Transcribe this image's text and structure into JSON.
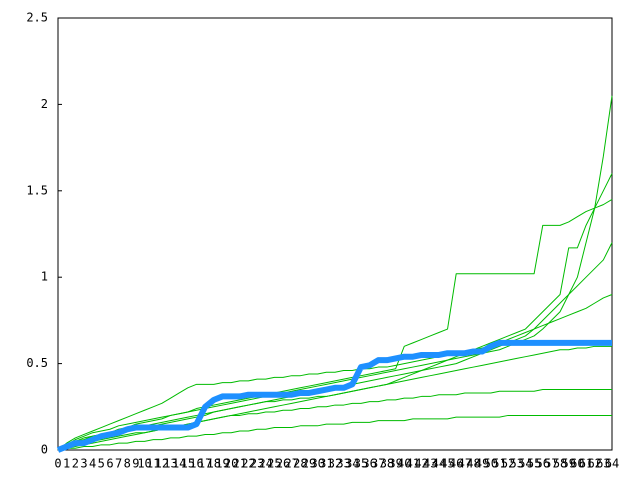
{
  "chart_data": {
    "type": "line",
    "categories": [
      "0",
      "1",
      "2",
      "3",
      "4",
      "5",
      "6",
      "7",
      "8",
      "9",
      "10",
      "11",
      "12",
      "13",
      "14",
      "15",
      "16",
      "17",
      "18",
      "19",
      "20",
      "21",
      "22",
      "23",
      "24",
      "25",
      "26",
      "27",
      "28",
      "29",
      "30",
      "31",
      "32",
      "33",
      "34",
      "35",
      "36",
      "37",
      "38",
      "39",
      "40",
      "41",
      "42",
      "43",
      "44",
      "45",
      "46",
      "47",
      "48",
      "49",
      "50",
      "51",
      "52",
      "53",
      "54",
      "55",
      "56",
      "57",
      "58",
      "59",
      "60",
      "61",
      "62",
      "63",
      "64"
    ],
    "ylim": [
      0,
      2.5
    ],
    "yticks": [
      0,
      0.5,
      1,
      1.5,
      2,
      2.5
    ],
    "series": [
      {
        "color": "#00bb00",
        "values": [
          0,
          0.02,
          0.04,
          0.05,
          0.07,
          0.08,
          0.09,
          0.1,
          0.11,
          0.12,
          0.13,
          0.14,
          0.15,
          0.16,
          0.17,
          0.18,
          0.19,
          0.2,
          0.22,
          0.23,
          0.24,
          0.25,
          0.26,
          0.27,
          0.28,
          0.29,
          0.3,
          0.31,
          0.32,
          0.33,
          0.34,
          0.35,
          0.36,
          0.37,
          0.38,
          0.39,
          0.4,
          0.41,
          0.42,
          0.43,
          0.44,
          0.45,
          0.46,
          0.47,
          0.48,
          0.49,
          0.5,
          0.52,
          0.54,
          0.56,
          0.58,
          0.6,
          0.62,
          0.64,
          0.66,
          0.7,
          0.75,
          0.8,
          0.85,
          0.9,
          1.0,
          1.2,
          1.4,
          1.7,
          2.05
        ]
      },
      {
        "color": "#00bb00",
        "values": [
          0,
          0.03,
          0.05,
          0.06,
          0.08,
          0.09,
          0.1,
          0.12,
          0.13,
          0.15,
          0.16,
          0.17,
          0.18,
          0.2,
          0.21,
          0.22,
          0.24,
          0.25,
          0.26,
          0.27,
          0.28,
          0.29,
          0.3,
          0.31,
          0.32,
          0.33,
          0.34,
          0.35,
          0.36,
          0.37,
          0.38,
          0.39,
          0.4,
          0.41,
          0.42,
          0.43,
          0.44,
          0.45,
          0.46,
          0.47,
          0.6,
          0.62,
          0.64,
          0.66,
          0.68,
          0.7,
          1.02,
          1.02,
          1.02,
          1.02,
          1.02,
          1.02,
          1.02,
          1.02,
          1.02,
          1.02,
          1.3,
          1.3,
          1.3,
          1.32,
          1.35,
          1.38,
          1.4,
          1.42,
          1.45
        ]
      },
      {
        "color": "#00bb00",
        "values": [
          0,
          0.01,
          0.02,
          0.03,
          0.04,
          0.05,
          0.06,
          0.07,
          0.08,
          0.09,
          0.1,
          0.11,
          0.12,
          0.13,
          0.14,
          0.15,
          0.16,
          0.17,
          0.18,
          0.19,
          0.2,
          0.21,
          0.22,
          0.23,
          0.24,
          0.25,
          0.26,
          0.27,
          0.28,
          0.29,
          0.3,
          0.31,
          0.32,
          0.33,
          0.34,
          0.35,
          0.36,
          0.37,
          0.38,
          0.4,
          0.42,
          0.44,
          0.46,
          0.48,
          0.5,
          0.52,
          0.54,
          0.56,
          0.58,
          0.6,
          0.62,
          0.64,
          0.66,
          0.68,
          0.7,
          0.75,
          0.8,
          0.85,
          0.9,
          1.17,
          1.17,
          1.3,
          1.4,
          1.5,
          1.6
        ]
      },
      {
        "color": "#00bb00",
        "values": [
          0,
          0.01,
          0.01,
          0.02,
          0.02,
          0.03,
          0.03,
          0.04,
          0.04,
          0.05,
          0.05,
          0.06,
          0.06,
          0.07,
          0.07,
          0.08,
          0.08,
          0.09,
          0.09,
          0.1,
          0.1,
          0.11,
          0.11,
          0.12,
          0.12,
          0.13,
          0.13,
          0.13,
          0.14,
          0.14,
          0.14,
          0.15,
          0.15,
          0.15,
          0.16,
          0.16,
          0.16,
          0.17,
          0.17,
          0.17,
          0.17,
          0.18,
          0.18,
          0.18,
          0.18,
          0.18,
          0.19,
          0.19,
          0.19,
          0.19,
          0.19,
          0.19,
          0.2,
          0.2,
          0.2,
          0.2,
          0.2,
          0.2,
          0.2,
          0.2,
          0.2,
          0.2,
          0.2,
          0.2,
          0.2
        ]
      },
      {
        "color": "#00bb00",
        "values": [
          0,
          0.04,
          0.07,
          0.09,
          0.11,
          0.13,
          0.15,
          0.17,
          0.19,
          0.21,
          0.23,
          0.25,
          0.27,
          0.3,
          0.33,
          0.36,
          0.38,
          0.38,
          0.38,
          0.39,
          0.39,
          0.4,
          0.4,
          0.41,
          0.41,
          0.42,
          0.42,
          0.43,
          0.43,
          0.44,
          0.44,
          0.45,
          0.45,
          0.46,
          0.46,
          0.47,
          0.47,
          0.48,
          0.48,
          0.49,
          0.5,
          0.51,
          0.52,
          0.53,
          0.54,
          0.55,
          0.56,
          0.57,
          0.58,
          0.59,
          0.6,
          0.62,
          0.64,
          0.66,
          0.68,
          0.7,
          0.72,
          0.74,
          0.76,
          0.78,
          0.8,
          0.82,
          0.85,
          0.88,
          0.9
        ]
      },
      {
        "color": "#00bb00",
        "values": [
          0,
          0.02,
          0.03,
          0.04,
          0.05,
          0.06,
          0.07,
          0.08,
          0.09,
          0.1,
          0.1,
          0.11,
          0.12,
          0.13,
          0.14,
          0.15,
          0.16,
          0.17,
          0.18,
          0.19,
          0.2,
          0.2,
          0.21,
          0.21,
          0.22,
          0.22,
          0.23,
          0.23,
          0.24,
          0.24,
          0.25,
          0.25,
          0.26,
          0.26,
          0.27,
          0.27,
          0.28,
          0.28,
          0.29,
          0.29,
          0.3,
          0.3,
          0.31,
          0.31,
          0.32,
          0.32,
          0.32,
          0.33,
          0.33,
          0.33,
          0.33,
          0.34,
          0.34,
          0.34,
          0.34,
          0.34,
          0.35,
          0.35,
          0.35,
          0.35,
          0.35,
          0.35,
          0.35,
          0.35,
          0.35
        ]
      },
      {
        "color": "#00bb00",
        "values": [
          0,
          0.03,
          0.06,
          0.08,
          0.1,
          0.11,
          0.12,
          0.14,
          0.15,
          0.16,
          0.17,
          0.18,
          0.19,
          0.2,
          0.21,
          0.22,
          0.23,
          0.24,
          0.25,
          0.26,
          0.27,
          0.28,
          0.29,
          0.3,
          0.31,
          0.32,
          0.33,
          0.34,
          0.35,
          0.36,
          0.37,
          0.38,
          0.39,
          0.4,
          0.41,
          0.42,
          0.43,
          0.44,
          0.45,
          0.46,
          0.47,
          0.48,
          0.49,
          0.5,
          0.51,
          0.52,
          0.53,
          0.54,
          0.55,
          0.56,
          0.57,
          0.58,
          0.6,
          0.62,
          0.64,
          0.66,
          0.7,
          0.75,
          0.8,
          0.9,
          0.95,
          1.0,
          1.05,
          1.1,
          1.2
        ]
      },
      {
        "color": "#00bb00",
        "values": [
          0,
          0.02,
          0.05,
          0.07,
          0.08,
          0.09,
          0.1,
          0.11,
          0.12,
          0.13,
          0.14,
          0.15,
          0.16,
          0.17,
          0.18,
          0.19,
          0.2,
          0.21,
          0.22,
          0.23,
          0.24,
          0.25,
          0.26,
          0.27,
          0.28,
          0.28,
          0.29,
          0.29,
          0.3,
          0.3,
          0.31,
          0.31,
          0.32,
          0.33,
          0.34,
          0.35,
          0.36,
          0.37,
          0.38,
          0.39,
          0.4,
          0.41,
          0.42,
          0.43,
          0.44,
          0.45,
          0.46,
          0.47,
          0.48,
          0.49,
          0.5,
          0.51,
          0.52,
          0.53,
          0.54,
          0.55,
          0.56,
          0.57,
          0.58,
          0.58,
          0.59,
          0.59,
          0.6,
          0.6,
          0.6
        ]
      },
      {
        "color": "#1e90ff",
        "values": [
          0,
          0.02,
          0.04,
          0.04,
          0.06,
          0.08,
          0.09,
          0.1,
          0.12,
          0.13,
          0.13,
          0.13,
          0.13,
          0.13,
          0.13,
          0.13,
          0.15,
          0.25,
          0.29,
          0.31,
          0.31,
          0.31,
          0.32,
          0.32,
          0.32,
          0.32,
          0.32,
          0.32,
          0.33,
          0.33,
          0.34,
          0.35,
          0.36,
          0.36,
          0.38,
          0.48,
          0.49,
          0.52,
          0.52,
          0.53,
          0.54,
          0.54,
          0.55,
          0.55,
          0.55,
          0.56,
          0.56,
          0.56,
          0.57,
          0.57,
          0.6,
          0.62,
          0.62,
          0.62,
          0.62,
          0.62,
          0.62,
          0.62,
          0.62,
          0.62,
          0.62,
          0.62,
          0.62,
          0.62,
          0.62
        ]
      }
    ]
  }
}
